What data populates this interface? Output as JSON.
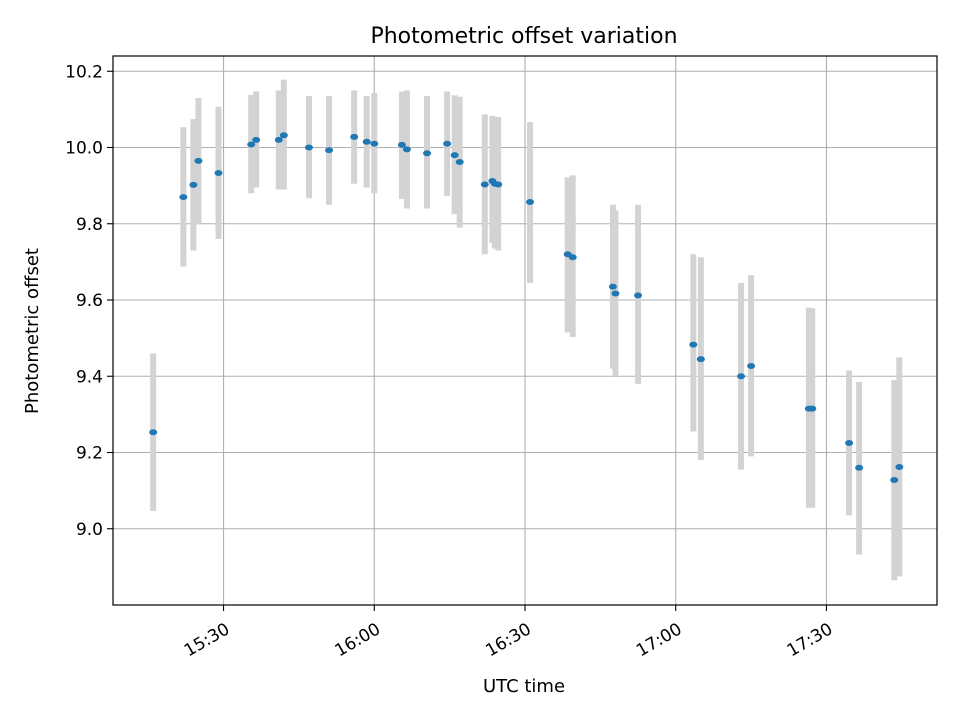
{
  "chart_data": {
    "type": "scatter",
    "title": "Photometric offset variation",
    "xlabel": "UTC time",
    "ylabel": "Photometric offset",
    "x_is_time": true,
    "xlim": [
      "15:08",
      "17:52"
    ],
    "ylim": [
      8.8,
      10.24
    ],
    "grid": true,
    "x_ticks": [
      "15:30",
      "16:00",
      "16:30",
      "17:00",
      "17:30"
    ],
    "y_ticks": [
      9.0,
      9.2,
      9.4,
      9.6,
      9.8,
      10.0,
      10.2
    ],
    "y_tick_labels": [
      "9.0",
      "9.2",
      "9.4",
      "9.6",
      "9.8",
      "10.0",
      "10.2"
    ],
    "point_color": "#1f77b4",
    "errorbar_color": "#d3d3d3",
    "points": [
      {
        "t": "15:16:00",
        "y": 9.253,
        "lo": 9.047,
        "hi": 9.46
      },
      {
        "t": "15:22:00",
        "y": 9.87,
        "lo": 9.688,
        "hi": 10.053
      },
      {
        "t": "15:24:00",
        "y": 9.902,
        "lo": 9.73,
        "hi": 10.075
      },
      {
        "t": "15:25:00",
        "y": 9.965,
        "lo": 9.8,
        "hi": 10.13
      },
      {
        "t": "15:29:00",
        "y": 9.933,
        "lo": 9.76,
        "hi": 10.107
      },
      {
        "t": "15:35:30",
        "y": 10.008,
        "lo": 9.88,
        "hi": 10.138
      },
      {
        "t": "15:36:30",
        "y": 10.02,
        "lo": 9.895,
        "hi": 10.147
      },
      {
        "t": "15:41:00",
        "y": 10.02,
        "lo": 9.89,
        "hi": 10.15
      },
      {
        "t": "15:42:00",
        "y": 10.032,
        "lo": 9.89,
        "hi": 10.178
      },
      {
        "t": "15:47:00",
        "y": 10.0,
        "lo": 9.867,
        "hi": 10.135
      },
      {
        "t": "15:51:00",
        "y": 9.993,
        "lo": 9.85,
        "hi": 10.135
      },
      {
        "t": "15:56:00",
        "y": 10.028,
        "lo": 9.905,
        "hi": 10.15
      },
      {
        "t": "15:58:30",
        "y": 10.015,
        "lo": 9.895,
        "hi": 10.135
      },
      {
        "t": "16:00:00",
        "y": 10.01,
        "lo": 9.88,
        "hi": 10.143
      },
      {
        "t": "16:05:30",
        "y": 10.007,
        "lo": 9.865,
        "hi": 10.147
      },
      {
        "t": "16:06:30",
        "y": 9.995,
        "lo": 9.84,
        "hi": 10.15
      },
      {
        "t": "16:10:30",
        "y": 9.985,
        "lo": 9.84,
        "hi": 10.135
      },
      {
        "t": "16:14:30",
        "y": 10.01,
        "lo": 9.873,
        "hi": 10.147
      },
      {
        "t": "16:16:00",
        "y": 9.98,
        "lo": 9.825,
        "hi": 10.137
      },
      {
        "t": "16:17:00",
        "y": 9.962,
        "lo": 9.79,
        "hi": 10.133
      },
      {
        "t": "16:22:00",
        "y": 9.903,
        "lo": 9.72,
        "hi": 10.087
      },
      {
        "t": "16:23:30",
        "y": 9.912,
        "lo": 9.75,
        "hi": 10.083
      },
      {
        "t": "16:24:00",
        "y": 9.905,
        "lo": 9.735,
        "hi": 10.073
      },
      {
        "t": "16:24:40",
        "y": 9.903,
        "lo": 9.73,
        "hi": 10.08
      },
      {
        "t": "16:31:00",
        "y": 9.857,
        "lo": 9.645,
        "hi": 10.067
      },
      {
        "t": "16:38:30",
        "y": 9.72,
        "lo": 9.515,
        "hi": 9.922
      },
      {
        "t": "16:39:30",
        "y": 9.712,
        "lo": 9.503,
        "hi": 9.927
      },
      {
        "t": "16:47:30",
        "y": 9.635,
        "lo": 9.42,
        "hi": 9.85
      },
      {
        "t": "16:48:00",
        "y": 9.617,
        "lo": 9.4,
        "hi": 9.835
      },
      {
        "t": "16:52:30",
        "y": 9.612,
        "lo": 9.38,
        "hi": 9.85
      },
      {
        "t": "17:03:30",
        "y": 9.483,
        "lo": 9.255,
        "hi": 9.72
      },
      {
        "t": "17:05:00",
        "y": 9.445,
        "lo": 9.18,
        "hi": 9.712
      },
      {
        "t": "17:13:00",
        "y": 9.4,
        "lo": 9.155,
        "hi": 9.645
      },
      {
        "t": "17:15:00",
        "y": 9.427,
        "lo": 9.19,
        "hi": 9.665
      },
      {
        "t": "17:26:30",
        "y": 9.315,
        "lo": 9.055,
        "hi": 9.58
      },
      {
        "t": "17:27:10",
        "y": 9.315,
        "lo": 9.055,
        "hi": 9.578
      },
      {
        "t": "17:34:30",
        "y": 9.225,
        "lo": 9.035,
        "hi": 9.415
      },
      {
        "t": "17:36:30",
        "y": 9.16,
        "lo": 8.932,
        "hi": 9.385
      },
      {
        "t": "17:43:30",
        "y": 9.128,
        "lo": 8.865,
        "hi": 9.39
      },
      {
        "t": "17:44:30",
        "y": 9.162,
        "lo": 8.875,
        "hi": 9.45
      }
    ]
  }
}
